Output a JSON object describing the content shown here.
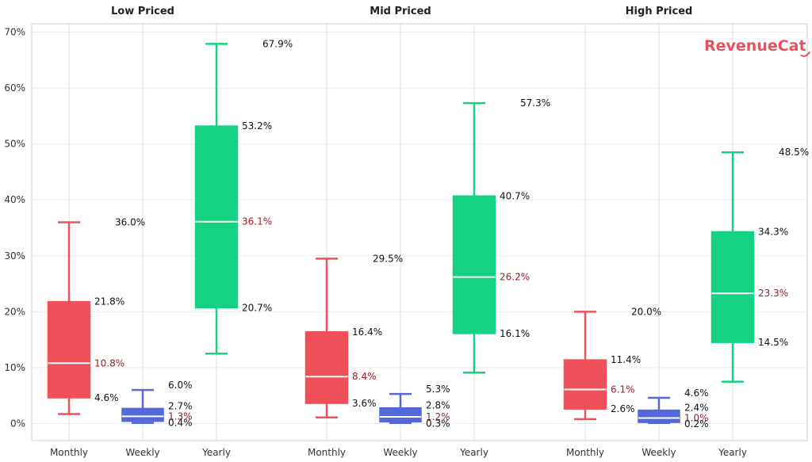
{
  "brand": {
    "logo_text": "RevenueCat",
    "color": "#e5535f"
  },
  "chart_data": {
    "type": "box",
    "yformat": "percent",
    "ylim": [
      -3,
      71
    ],
    "yticks": [
      0,
      10,
      20,
      30,
      40,
      50,
      60,
      70
    ],
    "ytick_labels": [
      "0%",
      "10%",
      "20%",
      "30%",
      "40%",
      "50%",
      "60%",
      "70%"
    ],
    "grid": true,
    "categories": [
      "Monthly",
      "Weekly",
      "Yearly"
    ],
    "category_colors": {
      "Monthly": "#f0505a",
      "Weekly": "#5468d9",
      "Yearly": "#14d282"
    },
    "panels": [
      {
        "title": "Low Priced",
        "boxes": [
          {
            "category": "Monthly",
            "whisker_low": 1.7,
            "q1": 4.6,
            "median": 10.8,
            "q3": 21.8,
            "whisker_high": 36.0,
            "labels": {
              "q1": "4.6%",
              "median": "10.8%",
              "q3": "21.8%",
              "whisker_high": "36.0%"
            }
          },
          {
            "category": "Weekly",
            "whisker_low": 0.1,
            "q1": 0.4,
            "median": 1.3,
            "q3": 2.7,
            "whisker_high": 6.0,
            "labels": {
              "q1": "0.4%",
              "median": "1.3%",
              "q3": "2.7%",
              "whisker_high": "6.0%"
            }
          },
          {
            "category": "Yearly",
            "whisker_low": 12.5,
            "q1": 20.7,
            "median": 36.1,
            "q3": 53.2,
            "whisker_high": 67.9,
            "labels": {
              "q1": "20.7%",
              "median": "36.1%",
              "q3": "53.2%",
              "whisker_high": "67.9%"
            }
          }
        ]
      },
      {
        "title": "Mid Priced",
        "boxes": [
          {
            "category": "Monthly",
            "whisker_low": 1.1,
            "q1": 3.6,
            "median": 8.4,
            "q3": 16.4,
            "whisker_high": 29.5,
            "labels": {
              "q1": "3.6%",
              "median": "8.4%",
              "q3": "16.4%",
              "whisker_high": "29.5%"
            }
          },
          {
            "category": "Weekly",
            "whisker_low": 0.1,
            "q1": 0.3,
            "median": 1.2,
            "q3": 2.8,
            "whisker_high": 5.3,
            "labels": {
              "q1": "0.3%",
              "median": "1.2%",
              "q3": "2.8%",
              "whisker_high": "5.3%"
            }
          },
          {
            "category": "Yearly",
            "whisker_low": 9.1,
            "q1": 16.1,
            "median": 26.2,
            "q3": 40.7,
            "whisker_high": 57.3,
            "labels": {
              "q1": "16.1%",
              "median": "26.2%",
              "q3": "40.7%",
              "whisker_high": "57.3%"
            }
          }
        ]
      },
      {
        "title": "High Priced",
        "boxes": [
          {
            "category": "Monthly",
            "whisker_low": 0.8,
            "q1": 2.6,
            "median": 6.1,
            "q3": 11.4,
            "whisker_high": 20.0,
            "labels": {
              "q1": "2.6%",
              "median": "6.1%",
              "q3": "11.4%",
              "whisker_high": "20.0%"
            }
          },
          {
            "category": "Weekly",
            "whisker_low": 0.1,
            "q1": 0.2,
            "median": 1.0,
            "q3": 2.4,
            "whisker_high": 4.6,
            "labels": {
              "q1": "0.2%",
              "median": "1.0%",
              "q3": "2.4%",
              "whisker_high": "4.6%"
            }
          },
          {
            "category": "Yearly",
            "whisker_low": 7.5,
            "q1": 14.5,
            "median": 23.3,
            "q3": 34.3,
            "whisker_high": 48.5,
            "labels": {
              "q1": "14.5%",
              "median": "23.3%",
              "q3": "34.3%",
              "whisker_high": "48.5%"
            }
          }
        ]
      }
    ]
  }
}
